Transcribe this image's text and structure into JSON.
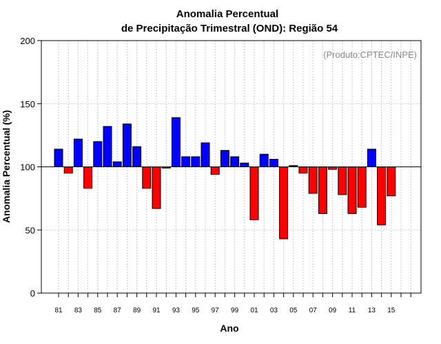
{
  "chart_data": {
    "type": "bar",
    "title_line1": "Anomalia Percentual",
    "title_line2": "de Precipitação Trimestral (OND): Região 54",
    "xlabel": "Ano",
    "ylabel": "Anomalia Percentual (%)",
    "annotation": "(Produto:CPTEC/INPE)",
    "baseline": 100,
    "ylim": [
      0,
      200
    ],
    "yticks": [
      0,
      50,
      100,
      150,
      200
    ],
    "xtick_labels": [
      "81",
      "83",
      "85",
      "87",
      "89",
      "91",
      "93",
      "95",
      "97",
      "99",
      "01",
      "03",
      "05",
      "07",
      "09",
      "11",
      "13",
      "15"
    ],
    "colors": {
      "above": "#0000ff",
      "below": "#ff0000",
      "grid": "#c8c8c8"
    },
    "categories": [
      "1981",
      "1982",
      "1983",
      "1984",
      "1985",
      "1986",
      "1987",
      "1988",
      "1989",
      "1990",
      "1991",
      "1992",
      "1993",
      "1994",
      "1995",
      "1996",
      "1997",
      "1998",
      "1999",
      "2000",
      "2001",
      "2002",
      "2003",
      "2004",
      "2005",
      "2006",
      "2007",
      "2008",
      "2009",
      "2010",
      "2011",
      "2012",
      "2013",
      "2014",
      "2015"
    ],
    "values": [
      114,
      95,
      122,
      83,
      120,
      132,
      104,
      134,
      116,
      83,
      67,
      99,
      139,
      108,
      108,
      119,
      94,
      113,
      108,
      103,
      58,
      110,
      106,
      43,
      101,
      95,
      79,
      63,
      98,
      78,
      63,
      68,
      114,
      54,
      77
    ]
  }
}
